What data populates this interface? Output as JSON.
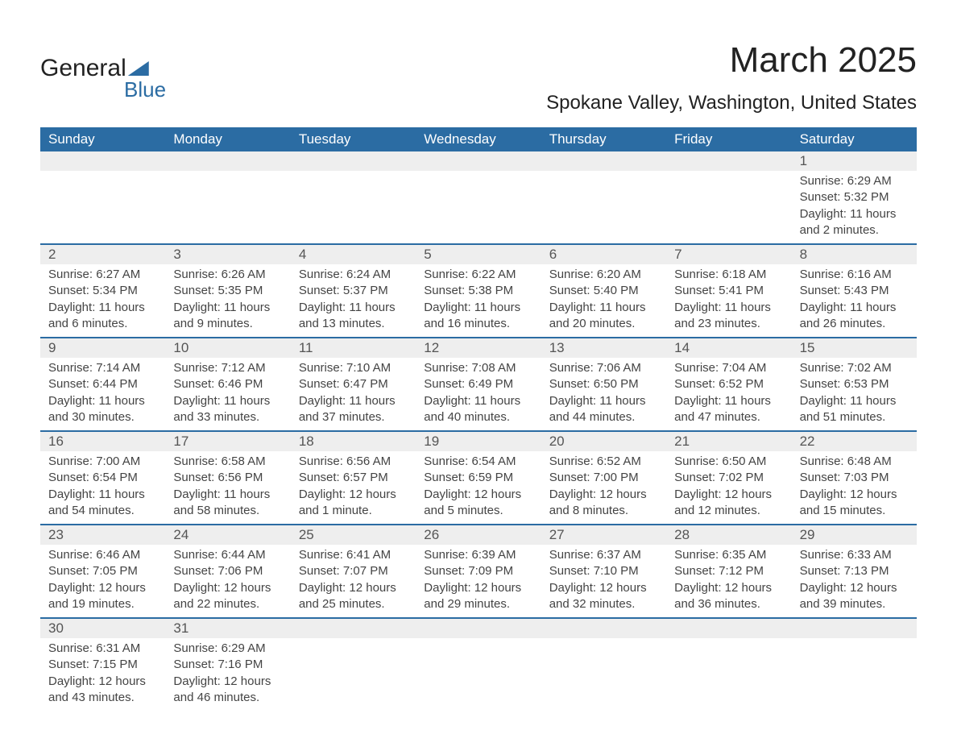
{
  "logo": {
    "line1": "General",
    "line2": "Blue",
    "brand_color": "#2b6ca3"
  },
  "title": "March 2025",
  "location": "Spokane Valley, Washington, United States",
  "header_bg": "#2b6ca3",
  "daynum_bg": "#eeeeee",
  "weekdays": [
    "Sunday",
    "Monday",
    "Tuesday",
    "Wednesday",
    "Thursday",
    "Friday",
    "Saturday"
  ],
  "weeks": [
    [
      {
        "n": "",
        "sunrise": "",
        "sunset": "",
        "daylight1": "",
        "daylight2": ""
      },
      {
        "n": "",
        "sunrise": "",
        "sunset": "",
        "daylight1": "",
        "daylight2": ""
      },
      {
        "n": "",
        "sunrise": "",
        "sunset": "",
        "daylight1": "",
        "daylight2": ""
      },
      {
        "n": "",
        "sunrise": "",
        "sunset": "",
        "daylight1": "",
        "daylight2": ""
      },
      {
        "n": "",
        "sunrise": "",
        "sunset": "",
        "daylight1": "",
        "daylight2": ""
      },
      {
        "n": "",
        "sunrise": "",
        "sunset": "",
        "daylight1": "",
        "daylight2": ""
      },
      {
        "n": "1",
        "sunrise": "Sunrise: 6:29 AM",
        "sunset": "Sunset: 5:32 PM",
        "daylight1": "Daylight: 11 hours",
        "daylight2": "and 2 minutes."
      }
    ],
    [
      {
        "n": "2",
        "sunrise": "Sunrise: 6:27 AM",
        "sunset": "Sunset: 5:34 PM",
        "daylight1": "Daylight: 11 hours",
        "daylight2": "and 6 minutes."
      },
      {
        "n": "3",
        "sunrise": "Sunrise: 6:26 AM",
        "sunset": "Sunset: 5:35 PM",
        "daylight1": "Daylight: 11 hours",
        "daylight2": "and 9 minutes."
      },
      {
        "n": "4",
        "sunrise": "Sunrise: 6:24 AM",
        "sunset": "Sunset: 5:37 PM",
        "daylight1": "Daylight: 11 hours",
        "daylight2": "and 13 minutes."
      },
      {
        "n": "5",
        "sunrise": "Sunrise: 6:22 AM",
        "sunset": "Sunset: 5:38 PM",
        "daylight1": "Daylight: 11 hours",
        "daylight2": "and 16 minutes."
      },
      {
        "n": "6",
        "sunrise": "Sunrise: 6:20 AM",
        "sunset": "Sunset: 5:40 PM",
        "daylight1": "Daylight: 11 hours",
        "daylight2": "and 20 minutes."
      },
      {
        "n": "7",
        "sunrise": "Sunrise: 6:18 AM",
        "sunset": "Sunset: 5:41 PM",
        "daylight1": "Daylight: 11 hours",
        "daylight2": "and 23 minutes."
      },
      {
        "n": "8",
        "sunrise": "Sunrise: 6:16 AM",
        "sunset": "Sunset: 5:43 PM",
        "daylight1": "Daylight: 11 hours",
        "daylight2": "and 26 minutes."
      }
    ],
    [
      {
        "n": "9",
        "sunrise": "Sunrise: 7:14 AM",
        "sunset": "Sunset: 6:44 PM",
        "daylight1": "Daylight: 11 hours",
        "daylight2": "and 30 minutes."
      },
      {
        "n": "10",
        "sunrise": "Sunrise: 7:12 AM",
        "sunset": "Sunset: 6:46 PM",
        "daylight1": "Daylight: 11 hours",
        "daylight2": "and 33 minutes."
      },
      {
        "n": "11",
        "sunrise": "Sunrise: 7:10 AM",
        "sunset": "Sunset: 6:47 PM",
        "daylight1": "Daylight: 11 hours",
        "daylight2": "and 37 minutes."
      },
      {
        "n": "12",
        "sunrise": "Sunrise: 7:08 AM",
        "sunset": "Sunset: 6:49 PM",
        "daylight1": "Daylight: 11 hours",
        "daylight2": "and 40 minutes."
      },
      {
        "n": "13",
        "sunrise": "Sunrise: 7:06 AM",
        "sunset": "Sunset: 6:50 PM",
        "daylight1": "Daylight: 11 hours",
        "daylight2": "and 44 minutes."
      },
      {
        "n": "14",
        "sunrise": "Sunrise: 7:04 AM",
        "sunset": "Sunset: 6:52 PM",
        "daylight1": "Daylight: 11 hours",
        "daylight2": "and 47 minutes."
      },
      {
        "n": "15",
        "sunrise": "Sunrise: 7:02 AM",
        "sunset": "Sunset: 6:53 PM",
        "daylight1": "Daylight: 11 hours",
        "daylight2": "and 51 minutes."
      }
    ],
    [
      {
        "n": "16",
        "sunrise": "Sunrise: 7:00 AM",
        "sunset": "Sunset: 6:54 PM",
        "daylight1": "Daylight: 11 hours",
        "daylight2": "and 54 minutes."
      },
      {
        "n": "17",
        "sunrise": "Sunrise: 6:58 AM",
        "sunset": "Sunset: 6:56 PM",
        "daylight1": "Daylight: 11 hours",
        "daylight2": "and 58 minutes."
      },
      {
        "n": "18",
        "sunrise": "Sunrise: 6:56 AM",
        "sunset": "Sunset: 6:57 PM",
        "daylight1": "Daylight: 12 hours",
        "daylight2": "and 1 minute."
      },
      {
        "n": "19",
        "sunrise": "Sunrise: 6:54 AM",
        "sunset": "Sunset: 6:59 PM",
        "daylight1": "Daylight: 12 hours",
        "daylight2": "and 5 minutes."
      },
      {
        "n": "20",
        "sunrise": "Sunrise: 6:52 AM",
        "sunset": "Sunset: 7:00 PM",
        "daylight1": "Daylight: 12 hours",
        "daylight2": "and 8 minutes."
      },
      {
        "n": "21",
        "sunrise": "Sunrise: 6:50 AM",
        "sunset": "Sunset: 7:02 PM",
        "daylight1": "Daylight: 12 hours",
        "daylight2": "and 12 minutes."
      },
      {
        "n": "22",
        "sunrise": "Sunrise: 6:48 AM",
        "sunset": "Sunset: 7:03 PM",
        "daylight1": "Daylight: 12 hours",
        "daylight2": "and 15 minutes."
      }
    ],
    [
      {
        "n": "23",
        "sunrise": "Sunrise: 6:46 AM",
        "sunset": "Sunset: 7:05 PM",
        "daylight1": "Daylight: 12 hours",
        "daylight2": "and 19 minutes."
      },
      {
        "n": "24",
        "sunrise": "Sunrise: 6:44 AM",
        "sunset": "Sunset: 7:06 PM",
        "daylight1": "Daylight: 12 hours",
        "daylight2": "and 22 minutes."
      },
      {
        "n": "25",
        "sunrise": "Sunrise: 6:41 AM",
        "sunset": "Sunset: 7:07 PM",
        "daylight1": "Daylight: 12 hours",
        "daylight2": "and 25 minutes."
      },
      {
        "n": "26",
        "sunrise": "Sunrise: 6:39 AM",
        "sunset": "Sunset: 7:09 PM",
        "daylight1": "Daylight: 12 hours",
        "daylight2": "and 29 minutes."
      },
      {
        "n": "27",
        "sunrise": "Sunrise: 6:37 AM",
        "sunset": "Sunset: 7:10 PM",
        "daylight1": "Daylight: 12 hours",
        "daylight2": "and 32 minutes."
      },
      {
        "n": "28",
        "sunrise": "Sunrise: 6:35 AM",
        "sunset": "Sunset: 7:12 PM",
        "daylight1": "Daylight: 12 hours",
        "daylight2": "and 36 minutes."
      },
      {
        "n": "29",
        "sunrise": "Sunrise: 6:33 AM",
        "sunset": "Sunset: 7:13 PM",
        "daylight1": "Daylight: 12 hours",
        "daylight2": "and 39 minutes."
      }
    ],
    [
      {
        "n": "30",
        "sunrise": "Sunrise: 6:31 AM",
        "sunset": "Sunset: 7:15 PM",
        "daylight1": "Daylight: 12 hours",
        "daylight2": "and 43 minutes."
      },
      {
        "n": "31",
        "sunrise": "Sunrise: 6:29 AM",
        "sunset": "Sunset: 7:16 PM",
        "daylight1": "Daylight: 12 hours",
        "daylight2": "and 46 minutes."
      },
      {
        "n": "",
        "sunrise": "",
        "sunset": "",
        "daylight1": "",
        "daylight2": ""
      },
      {
        "n": "",
        "sunrise": "",
        "sunset": "",
        "daylight1": "",
        "daylight2": ""
      },
      {
        "n": "",
        "sunrise": "",
        "sunset": "",
        "daylight1": "",
        "daylight2": ""
      },
      {
        "n": "",
        "sunrise": "",
        "sunset": "",
        "daylight1": "",
        "daylight2": ""
      },
      {
        "n": "",
        "sunrise": "",
        "sunset": "",
        "daylight1": "",
        "daylight2": ""
      }
    ]
  ]
}
